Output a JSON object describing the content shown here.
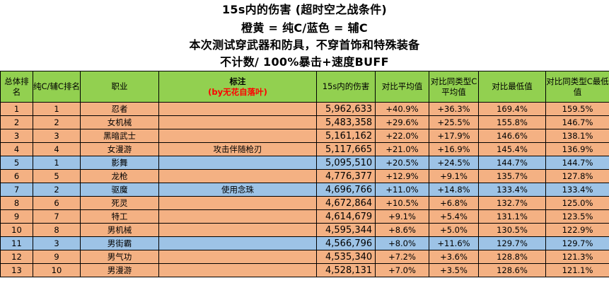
{
  "titles": [
    "15s内的伤害 (超时空之战条件)",
    "橙黄 = 纯C/蓝色 = 辅C",
    "本次测试穿武器和防具，不穿首饰和特殊装备",
    "不计数/ 100%暴击+速度BUFF"
  ],
  "headers": {
    "overall_rank": "总体排名",
    "type_rank": "纯C/辅C排名",
    "job": "职业",
    "note": "标注",
    "note_author": "(by无花自落叶)",
    "damage": "15s内的伤害",
    "vs_avg": "对比平均值",
    "vs_type_avg": "对比同类型C平均值",
    "vs_min": "对比最低值",
    "vs_type_min": "对比同类型C最低值"
  },
  "colors": {
    "header": "#92d050",
    "dps": "#f4b183",
    "support": "#9dc3e6",
    "note_text": "#ff0000"
  },
  "rows": [
    {
      "rank": "1",
      "type_rank": "1",
      "job": "忍者",
      "note": "",
      "damage": "5,962,633",
      "vs_avg": "+40.9%",
      "vs_type_avg": "+36.3%",
      "vs_min": "169.4%",
      "vs_type_min": "159.5%",
      "type": "dps"
    },
    {
      "rank": "2",
      "type_rank": "2",
      "job": "女机械",
      "note": "",
      "damage": "5,483,358",
      "vs_avg": "+29.6%",
      "vs_type_avg": "+25.5%",
      "vs_min": "155.8%",
      "vs_type_min": "146.7%",
      "type": "dps"
    },
    {
      "rank": "3",
      "type_rank": "3",
      "job": "黑暗武士",
      "note": "",
      "damage": "5,161,162",
      "vs_avg": "+22.0%",
      "vs_type_avg": "+17.9%",
      "vs_min": "146.6%",
      "vs_type_min": "138.1%",
      "type": "dps"
    },
    {
      "rank": "4",
      "type_rank": "4",
      "job": "女漫游",
      "note": "攻击伴随枪刃",
      "damage": "5,117,665",
      "vs_avg": "+21.0%",
      "vs_type_avg": "+16.9%",
      "vs_min": "145.4%",
      "vs_type_min": "136.9%",
      "type": "dps"
    },
    {
      "rank": "5",
      "type_rank": "1",
      "job": "影舞",
      "note": "",
      "damage": "5,095,510",
      "vs_avg": "+20.5%",
      "vs_type_avg": "+24.5%",
      "vs_min": "144.7%",
      "vs_type_min": "144.7%",
      "type": "support"
    },
    {
      "rank": "6",
      "type_rank": "5",
      "job": "龙枪",
      "note": "",
      "damage": "4,776,377",
      "vs_avg": "+12.9%",
      "vs_type_avg": "+9.1%",
      "vs_min": "135.7%",
      "vs_type_min": "127.8%",
      "type": "dps"
    },
    {
      "rank": "7",
      "type_rank": "2",
      "job": "驱魔",
      "note": "使用念珠",
      "damage": "4,696,766",
      "vs_avg": "+11.0%",
      "vs_type_avg": "+14.8%",
      "vs_min": "133.4%",
      "vs_type_min": "133.4%",
      "type": "support"
    },
    {
      "rank": "8",
      "type_rank": "6",
      "job": "死灵",
      "note": "",
      "damage": "4,672,864",
      "vs_avg": "+10.5%",
      "vs_type_avg": "+6.8%",
      "vs_min": "132.7%",
      "vs_type_min": "125.0%",
      "type": "dps"
    },
    {
      "rank": "9",
      "type_rank": "7",
      "job": "特工",
      "note": "",
      "damage": "4,614,679",
      "vs_avg": "+9.1%",
      "vs_type_avg": "+5.4%",
      "vs_min": "131.1%",
      "vs_type_min": "123.5%",
      "type": "dps"
    },
    {
      "rank": "10",
      "type_rank": "8",
      "job": "男机械",
      "note": "",
      "damage": "4,595,344",
      "vs_avg": "+8.6%",
      "vs_type_avg": "+5.0%",
      "vs_min": "130.5%",
      "vs_type_min": "122.9%",
      "type": "dps"
    },
    {
      "rank": "11",
      "type_rank": "3",
      "job": "男街霸",
      "note": "",
      "damage": "4,566,796",
      "vs_avg": "+8.0%",
      "vs_type_avg": "+11.6%",
      "vs_min": "129.7%",
      "vs_type_min": "129.7%",
      "type": "support"
    },
    {
      "rank": "12",
      "type_rank": "9",
      "job": "男气功",
      "note": "",
      "damage": "4,535,340",
      "vs_avg": "+7.2%",
      "vs_type_avg": "+3.6%",
      "vs_min": "128.8%",
      "vs_type_min": "121.3%",
      "type": "dps"
    },
    {
      "rank": "13",
      "type_rank": "10",
      "job": "男漫游",
      "note": "",
      "damage": "4,528,131",
      "vs_avg": "+7.0%",
      "vs_type_avg": "+3.5%",
      "vs_min": "128.6%",
      "vs_type_min": "121.1%",
      "type": "dps"
    }
  ]
}
